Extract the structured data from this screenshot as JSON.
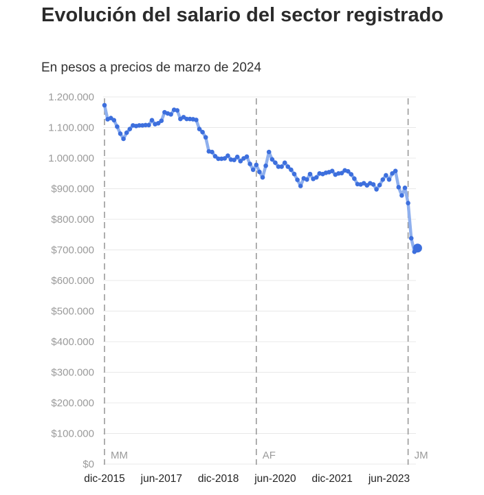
{
  "title": "Evolución del salario del sector registrado",
  "subtitle": "En pesos a precios de marzo de 2024",
  "chart_data": {
    "type": "line",
    "title": "Evolución del salario del sector registrado",
    "subtitle": "En pesos a precios de marzo de 2024",
    "xlabel": "",
    "ylabel": "",
    "ylim": [
      0,
      1200000
    ],
    "grid": true,
    "y_ticks": [
      "$0",
      "$100.000",
      "$200.000",
      "$300.000",
      "$400.000",
      "$500.000",
      "$600.000",
      "$700.000",
      "$800.000",
      "$900.000",
      "1.000.000",
      "1.100.000",
      "1.200.000"
    ],
    "x_tick_labels": [
      "dic-2015",
      "jun-2017",
      "dic-2018",
      "jun-2020",
      "dic-2021",
      "jun-2023"
    ],
    "periods": [
      {
        "label": "MM",
        "start": "2015-12"
      },
      {
        "label": "AF",
        "start": "2019-12"
      },
      {
        "label": "JM",
        "start": "2023-12"
      }
    ],
    "colors": {
      "line": "#8fb0ee",
      "points": "#3d6fdd"
    },
    "series": [
      {
        "x": [
          "2015-12",
          "2016-01",
          "2016-02",
          "2016-03",
          "2016-04",
          "2016-05",
          "2016-06",
          "2016-07",
          "2016-08",
          "2016-09",
          "2016-10",
          "2016-11",
          "2016-12",
          "2017-01",
          "2017-02",
          "2017-03",
          "2017-04",
          "2017-05",
          "2017-06",
          "2017-07",
          "2017-08",
          "2017-09",
          "2017-10",
          "2017-11",
          "2017-12",
          "2018-01",
          "2018-02",
          "2018-03",
          "2018-04",
          "2018-05",
          "2018-06",
          "2018-07",
          "2018-08",
          "2018-09",
          "2018-10",
          "2018-11",
          "2018-12",
          "2019-01",
          "2019-02",
          "2019-03",
          "2019-04",
          "2019-05",
          "2019-06",
          "2019-07",
          "2019-08",
          "2019-09",
          "2019-10",
          "2019-11",
          "2019-12",
          "2020-01",
          "2020-02",
          "2020-03",
          "2020-04",
          "2020-05",
          "2020-06",
          "2020-07",
          "2020-08",
          "2020-09",
          "2020-10",
          "2020-11",
          "2020-12",
          "2021-01",
          "2021-02",
          "2021-03",
          "2021-04",
          "2021-05",
          "2021-06",
          "2021-07",
          "2021-08",
          "2021-09",
          "2021-10",
          "2021-11",
          "2021-12",
          "2022-01",
          "2022-02",
          "2022-03",
          "2022-04",
          "2022-05",
          "2022-06",
          "2022-07",
          "2022-08",
          "2022-09",
          "2022-10",
          "2022-11",
          "2022-12",
          "2023-01",
          "2023-02",
          "2023-03",
          "2023-04",
          "2023-05",
          "2023-06",
          "2023-07",
          "2023-08",
          "2023-09",
          "2023-10",
          "2023-11",
          "2023-12",
          "2024-01",
          "2024-02",
          "2024-03"
        ],
        "values": [
          1173000,
          1127000,
          1131000,
          1124000,
          1103000,
          1080000,
          1063000,
          1083000,
          1095000,
          1107000,
          1105000,
          1107000,
          1107000,
          1108000,
          1108000,
          1124000,
          1111000,
          1114000,
          1122000,
          1150000,
          1146000,
          1143000,
          1158000,
          1156000,
          1128000,
          1134000,
          1128000,
          1128000,
          1127000,
          1125000,
          1095000,
          1085000,
          1068000,
          1022000,
          1020000,
          1006000,
          998000,
          998000,
          999000,
          1008000,
          995000,
          994000,
          1004000,
          990000,
          999000,
          1005000,
          981000,
          962000,
          978000,
          955000,
          937000,
          975000,
          1020000,
          996000,
          985000,
          972000,
          972000,
          985000,
          972000,
          962000,
          948000,
          929000,
          909000,
          934000,
          930000,
          948000,
          932000,
          937000,
          950000,
          948000,
          952000,
          954000,
          958000,
          946000,
          950000,
          951000,
          960000,
          957000,
          947000,
          933000,
          915000,
          914000,
          918000,
          911000,
          918000,
          914000,
          898000,
          912000,
          930000,
          944000,
          930000,
          950000,
          958000,
          905000,
          878000,
          903000,
          853000,
          738000,
          694000,
          706000
        ]
      }
    ]
  }
}
